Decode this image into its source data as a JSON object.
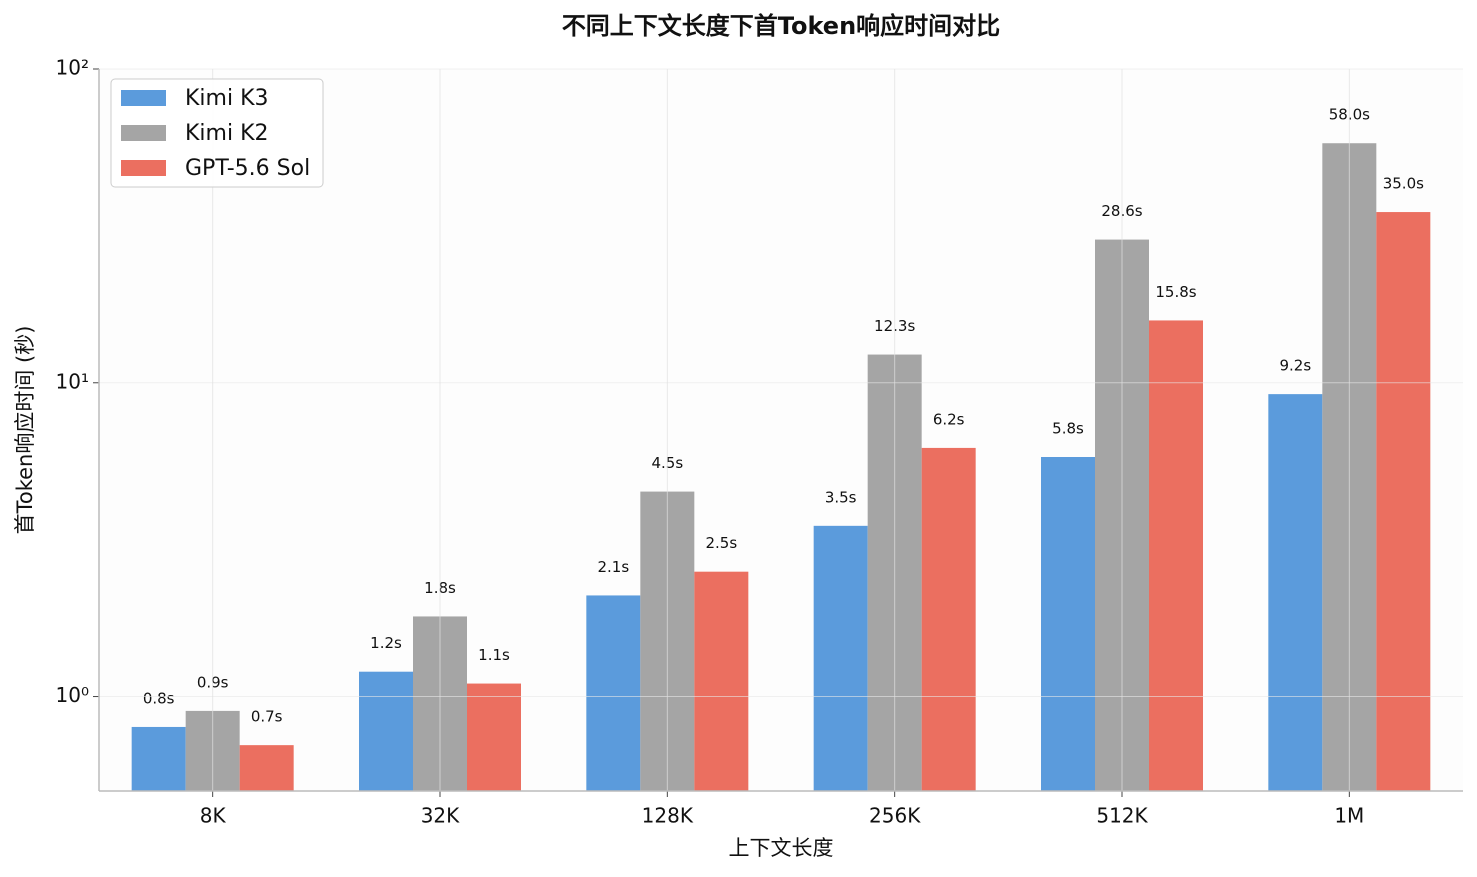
{
  "chart_data": {
    "type": "bar",
    "title": "不同上下文长度下首Token响应时间对比",
    "xlabel": "上下文长度",
    "ylabel": "首Token响应时间 (秒)",
    "categories": [
      "8K",
      "32K",
      "128K",
      "256K",
      "512K",
      "1M"
    ],
    "series": [
      {
        "name": "Kimi K3",
        "color": "#5b9bdc",
        "values": [
          0.8,
          1.2,
          2.1,
          3.5,
          5.8,
          9.2
        ],
        "value_labels": [
          "0.8s",
          "1.2s",
          "2.1s",
          "3.5s",
          "5.8s",
          "9.2s"
        ]
      },
      {
        "name": "Kimi K2",
        "color": "#a5a5a5",
        "values": [
          0.9,
          1.8,
          4.5,
          12.3,
          28.6,
          58.0
        ],
        "value_labels": [
          "0.9s",
          "1.8s",
          "4.5s",
          "12.3s",
          "28.6s",
          "58.0s"
        ]
      },
      {
        "name": "GPT-5.6 Sol",
        "color": "#eb6f60",
        "values": [
          0.7,
          1.1,
          2.5,
          6.2,
          15.8,
          35.0
        ],
        "value_labels": [
          "0.7s",
          "1.1s",
          "2.5s",
          "6.2s",
          "15.8s",
          "35.0s"
        ]
      }
    ],
    "log_scale": true,
    "ylim": [
      0.5,
      100
    ],
    "yticks": [
      {
        "value": 1,
        "label": "10⁰"
      },
      {
        "value": 10,
        "label": "10¹"
      },
      {
        "value": 100,
        "label": "10²"
      }
    ],
    "grid": true,
    "legend": "upper left"
  }
}
